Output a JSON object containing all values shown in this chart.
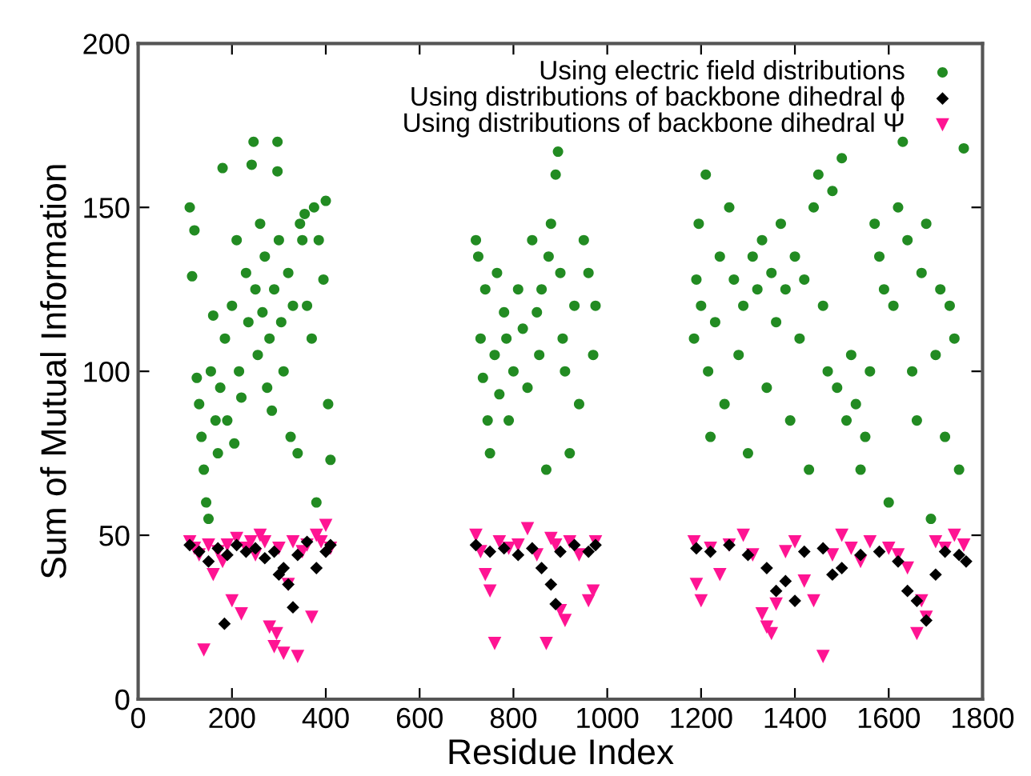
{
  "chart_data": {
    "type": "scatter",
    "xlabel": "Residue Index",
    "ylabel": "Sum of Mutual Information",
    "xlim": [
      0,
      1800
    ],
    "ylim": [
      0,
      200
    ],
    "xticks": [
      0,
      200,
      400,
      600,
      800,
      1000,
      1200,
      1400,
      1600,
      1800
    ],
    "yticks": [
      0,
      50,
      100,
      150,
      200
    ],
    "grid": false,
    "legend": "top right",
    "series": [
      {
        "name": "Using electric field distributions",
        "color": "#228b22",
        "marker": "circle",
        "x": [
          110,
          115,
          120,
          125,
          130,
          135,
          140,
          145,
          150,
          155,
          160,
          165,
          170,
          175,
          180,
          185,
          190,
          200,
          205,
          210,
          215,
          220,
          230,
          235,
          242,
          246,
          250,
          255,
          260,
          265,
          270,
          275,
          280,
          285,
          290,
          297,
          297,
          300,
          305,
          310,
          320,
          325,
          330,
          340,
          345,
          350,
          355,
          360,
          370,
          375,
          380,
          385,
          395,
          400,
          405,
          410,
          720,
          725,
          730,
          735,
          740,
          745,
          750,
          760,
          765,
          770,
          780,
          785,
          790,
          800,
          810,
          820,
          830,
          840,
          850,
          855,
          860,
          870,
          875,
          880,
          890,
          895,
          900,
          905,
          910,
          920,
          930,
          940,
          950,
          960,
          970,
          975,
          1185,
          1190,
          1195,
          1200,
          1210,
          1215,
          1220,
          1230,
          1240,
          1250,
          1260,
          1270,
          1280,
          1290,
          1300,
          1310,
          1320,
          1330,
          1340,
          1350,
          1360,
          1370,
          1380,
          1390,
          1400,
          1410,
          1420,
          1430,
          1440,
          1450,
          1460,
          1470,
          1480,
          1490,
          1500,
          1510,
          1520,
          1530,
          1540,
          1550,
          1560,
          1570,
          1580,
          1590,
          1600,
          1610,
          1620,
          1630,
          1640,
          1650,
          1660,
          1670,
          1680,
          1690,
          1700,
          1710,
          1720,
          1730,
          1740,
          1750,
          1760
        ],
        "values": [
          150,
          129,
          143,
          98,
          90,
          80,
          70,
          60,
          55,
          100,
          117,
          85,
          75,
          95,
          162,
          110,
          85,
          120,
          78,
          140,
          100,
          92,
          130,
          115,
          163,
          170,
          125,
          105,
          145,
          118,
          135,
          95,
          110,
          88,
          125,
          170,
          161,
          140,
          115,
          100,
          130,
          80,
          120,
          75,
          145,
          140,
          148,
          120,
          110,
          150,
          60,
          140,
          128,
          152,
          90,
          73,
          140,
          135,
          110,
          98,
          125,
          85,
          75,
          105,
          130,
          93,
          118,
          110,
          85,
          100,
          125,
          113,
          95,
          140,
          118,
          105,
          125,
          70,
          135,
          145,
          160,
          167,
          130,
          110,
          100,
          75,
          120,
          90,
          140,
          130,
          105,
          120,
          110,
          128,
          145,
          120,
          160,
          100,
          80,
          115,
          135,
          90,
          150,
          128,
          105,
          120,
          75,
          135,
          125,
          140,
          95,
          130,
          115,
          145,
          125,
          85,
          135,
          110,
          128,
          70,
          150,
          160,
          120,
          100,
          155,
          95,
          165,
          85,
          105,
          90,
          70,
          80,
          100,
          145,
          135,
          125,
          60,
          120,
          150,
          170,
          140,
          100,
          85,
          130,
          145,
          55,
          105,
          125,
          80,
          120,
          110,
          70,
          168
        ]
      },
      {
        "name": "Using distributions of backbone dihedral ϕ",
        "color": "#000000",
        "marker": "diamond",
        "x": [
          110,
          130,
          150,
          170,
          184,
          190,
          210,
          230,
          250,
          270,
          290,
          300,
          310,
          320,
          330,
          340,
          360,
          380,
          400,
          410,
          720,
          750,
          780,
          810,
          840,
          860,
          880,
          890,
          900,
          930,
          960,
          975,
          1190,
          1220,
          1260,
          1300,
          1340,
          1360,
          1380,
          1400,
          1420,
          1460,
          1480,
          1500,
          1540,
          1580,
          1620,
          1640,
          1660,
          1680,
          1700,
          1720,
          1750,
          1765
        ],
        "values": [
          47,
          45,
          42,
          46,
          23,
          44,
          47,
          45,
          46,
          43,
          45,
          38,
          40,
          35,
          28,
          44,
          48,
          40,
          45,
          47,
          47,
          45,
          46,
          44,
          46,
          40,
          35,
          29,
          45,
          47,
          45,
          47,
          46,
          45,
          47,
          44,
          40,
          33,
          36,
          30,
          45,
          46,
          38,
          40,
          44,
          45,
          42,
          33,
          30,
          24,
          38,
          45,
          44,
          42
        ]
      },
      {
        "name": "Using distributions of backbone dihedral Ψ",
        "color": "#ff1493",
        "marker": "triangle",
        "x": [
          110,
          120,
          130,
          140,
          150,
          160,
          170,
          180,
          190,
          200,
          210,
          220,
          230,
          240,
          250,
          260,
          270,
          280,
          290,
          295,
          300,
          310,
          320,
          330,
          340,
          350,
          360,
          370,
          380,
          390,
          400,
          410,
          720,
          730,
          740,
          750,
          760,
          770,
          790,
          810,
          830,
          850,
          870,
          880,
          890,
          900,
          910,
          920,
          940,
          960,
          970,
          975,
          1185,
          1190,
          1200,
          1220,
          1240,
          1260,
          1290,
          1310,
          1330,
          1340,
          1350,
          1360,
          1380,
          1400,
          1420,
          1440,
          1460,
          1480,
          1500,
          1520,
          1540,
          1560,
          1600,
          1620,
          1640,
          1660,
          1670,
          1680,
          1700,
          1720,
          1740,
          1760
        ],
        "values": [
          48,
          46,
          44,
          15,
          47,
          38,
          45,
          42,
          47,
          30,
          49,
          26,
          46,
          48,
          44,
          50,
          48,
          22,
          16,
          20,
          46,
          14,
          35,
          48,
          13,
          45,
          47,
          25,
          50,
          48,
          53,
          46,
          50,
          45,
          38,
          33,
          17,
          48,
          46,
          47,
          52,
          44,
          17,
          49,
          47,
          27,
          24,
          48,
          44,
          30,
          33,
          48,
          48,
          35,
          30,
          46,
          38,
          47,
          50,
          44,
          26,
          22,
          20,
          29,
          45,
          48,
          36,
          30,
          13,
          44,
          50,
          46,
          42,
          48,
          46,
          44,
          40,
          20,
          30,
          25,
          48,
          46,
          50,
          47
        ]
      }
    ]
  }
}
